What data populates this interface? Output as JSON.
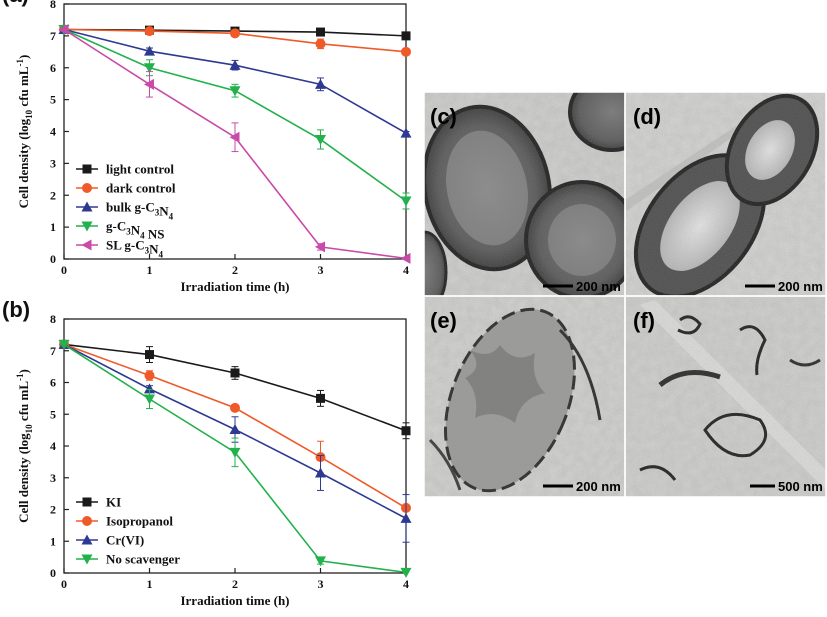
{
  "chart_data": [
    {
      "panel": "(a)",
      "type": "line",
      "xlabel": "Irradiation time (h)",
      "ylabel": "Cell density (log10 cfu mL-1)",
      "ylabel_parts": {
        "pre": "Cell density (log",
        "sub": "10",
        "mid": " cfu mL",
        "sup": "-1",
        "post": ")"
      },
      "x": [
        0,
        1,
        2,
        3,
        4
      ],
      "xlim": [
        0,
        4
      ],
      "ylim": [
        0,
        8
      ],
      "x_ticks": [
        "0",
        "1",
        "2",
        "3",
        "4"
      ],
      "y_ticks": [
        "0",
        "1",
        "2",
        "3",
        "4",
        "5",
        "6",
        "7",
        "8"
      ],
      "legend_position": "bottom-left",
      "series": [
        {
          "name": "light control",
          "name_parts": [
            [
              "light control",
              ""
            ]
          ],
          "color": "#1a1a1a",
          "marker": "square",
          "values": [
            7.2,
            7.18,
            7.15,
            7.12,
            7.0
          ],
          "errors": [
            0.05,
            0.05,
            0.05,
            0.05,
            0.05
          ]
        },
        {
          "name": "dark control",
          "name_parts": [
            [
              "dark control",
              ""
            ]
          ],
          "color": "#f05a28",
          "marker": "circle",
          "values": [
            7.2,
            7.15,
            7.08,
            6.75,
            6.5
          ],
          "errors": [
            0.05,
            0.05,
            0.1,
            0.15,
            0.05
          ]
        },
        {
          "name": "bulk g-C3N4",
          "name_parts": [
            [
              "bulk g-C",
              ""
            ],
            [
              "3",
              "sub"
            ],
            [
              "N",
              ""
            ],
            [
              "4",
              "sub"
            ]
          ],
          "color": "#2e3a92",
          "marker": "triangle-up",
          "values": [
            7.2,
            6.52,
            6.08,
            5.48,
            3.95
          ],
          "errors": [
            0.05,
            0.1,
            0.15,
            0.2,
            0.05
          ]
        },
        {
          "name": "g-C3N4 NS",
          "name_parts": [
            [
              "g-C",
              ""
            ],
            [
              "3",
              "sub"
            ],
            [
              "N",
              ""
            ],
            [
              "4",
              "sub"
            ],
            [
              " NS",
              ""
            ]
          ],
          "color": "#22b14c",
          "marker": "triangle-down",
          "values": [
            7.2,
            6.0,
            5.28,
            3.75,
            1.82
          ],
          "errors": [
            0.05,
            0.25,
            0.2,
            0.3,
            0.25
          ]
        },
        {
          "name": "SL g-C3N4",
          "name_parts": [
            [
              "SL g-C",
              ""
            ],
            [
              "3",
              "sub"
            ],
            [
              "N",
              ""
            ],
            [
              "4",
              "sub"
            ]
          ],
          "color": "#c94aa8",
          "marker": "triangle-left",
          "values": [
            7.2,
            5.48,
            3.82,
            0.38,
            0.02
          ],
          "errors": [
            0.05,
            0.4,
            0.45,
            0.1,
            0.02
          ]
        }
      ]
    },
    {
      "panel": "(b)",
      "type": "line",
      "xlabel": "Irradiation time (h)",
      "ylabel": "Cell density (log10 cfu mL-1)",
      "ylabel_parts": {
        "pre": "Cell density (log",
        "sub": "10",
        "mid": " cfu mL",
        "sup": "-1",
        "post": ")"
      },
      "x": [
        0,
        1,
        2,
        3,
        4
      ],
      "xlim": [
        0,
        4
      ],
      "ylim": [
        0,
        8
      ],
      "x_ticks": [
        "0",
        "1",
        "2",
        "3",
        "4"
      ],
      "y_ticks": [
        "0",
        "1",
        "2",
        "3",
        "4",
        "5",
        "6",
        "7",
        "8"
      ],
      "legend_position": "bottom-left",
      "series": [
        {
          "name": "KI",
          "name_parts": [
            [
              "KI",
              ""
            ]
          ],
          "color": "#1a1a1a",
          "marker": "square",
          "values": [
            7.2,
            6.88,
            6.3,
            5.5,
            4.48
          ],
          "errors": [
            0.05,
            0.25,
            0.2,
            0.25,
            0.25
          ]
        },
        {
          "name": "Isopropanol",
          "name_parts": [
            [
              "Isopropanol",
              ""
            ]
          ],
          "color": "#f05a28",
          "marker": "circle",
          "values": [
            7.2,
            6.22,
            5.2,
            3.65,
            2.05
          ],
          "errors": [
            0.05,
            0.15,
            0.1,
            0.5,
            0.05
          ]
        },
        {
          "name": "Cr(VI)",
          "name_parts": [
            [
              "Cr(VI)",
              ""
            ]
          ],
          "color": "#2e3a92",
          "marker": "triangle-up",
          "values": [
            7.2,
            5.8,
            4.52,
            3.15,
            1.72
          ],
          "errors": [
            0.05,
            0.1,
            0.4,
            0.55,
            0.75
          ]
        },
        {
          "name": "No scavenger",
          "name_parts": [
            [
              "No scavenger",
              ""
            ]
          ],
          "color": "#22b14c",
          "marker": "triangle-down",
          "values": [
            7.2,
            5.48,
            3.8,
            0.38,
            0.02
          ],
          "errors": [
            0.05,
            0.3,
            0.45,
            0.1,
            0.02
          ]
        }
      ]
    }
  ],
  "tem_images": [
    {
      "label": "(c)",
      "scale_bar": "200 nm"
    },
    {
      "label": "(d)",
      "scale_bar": "200 nm"
    },
    {
      "label": "(e)",
      "scale_bar": "200 nm"
    },
    {
      "label": "(f)",
      "scale_bar": "500 nm"
    }
  ]
}
